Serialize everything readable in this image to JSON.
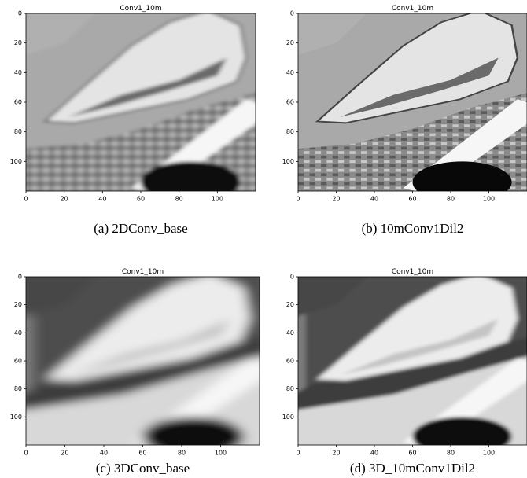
{
  "panels": [
    {
      "title": "Conv1_10m",
      "caption": "(a) 2DConv_base",
      "xlim": [
        0,
        120
      ],
      "ylim": [
        0,
        120
      ],
      "xticks": [
        0,
        20,
        40,
        60,
        80,
        100
      ],
      "yticks": [
        0,
        20,
        40,
        60,
        80,
        100
      ]
    },
    {
      "title": "Conv1_10m",
      "caption": "(b) 10mConv1Dil2",
      "xlim": [
        0,
        120
      ],
      "ylim": [
        0,
        120
      ],
      "xticks": [
        0,
        20,
        40,
        60,
        80,
        100
      ],
      "yticks": [
        0,
        20,
        40,
        60,
        80,
        100
      ]
    },
    {
      "title": "Conv1_10m",
      "caption": "(c) 3DConv_base",
      "xlim": [
        0,
        120
      ],
      "ylim": [
        0,
        120
      ],
      "xticks": [
        0,
        20,
        40,
        60,
        80,
        100
      ],
      "yticks": [
        0,
        20,
        40,
        60,
        80,
        100
      ]
    },
    {
      "title": "Conv1_10m",
      "caption": "(d) 3D_10mConv1Dil2",
      "xlim": [
        0,
        120
      ],
      "ylim": [
        0,
        120
      ],
      "xticks": [
        0,
        20,
        40,
        60,
        80,
        100
      ],
      "yticks": [
        0,
        20,
        40,
        60,
        80,
        100
      ]
    }
  ]
}
